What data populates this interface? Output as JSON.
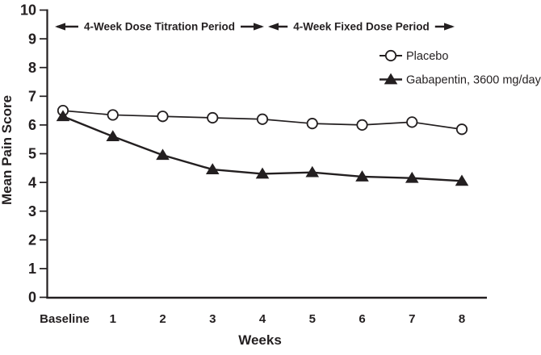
{
  "figure": {
    "background": "#ffffff",
    "ink": "#231f20"
  },
  "chart_data": {
    "type": "line",
    "title": "",
    "xlabel": "Weeks",
    "ylabel": "Mean Pain Score",
    "x_categories": [
      "Baseline",
      "1",
      "2",
      "3",
      "4",
      "5",
      "6",
      "7",
      "8"
    ],
    "ylim": [
      0,
      10
    ],
    "yticks": [
      0,
      1,
      2,
      3,
      4,
      5,
      6,
      7,
      8,
      9,
      10
    ],
    "grid": false,
    "legend_position": "upper-right",
    "series": [
      {
        "name": "Placebo",
        "marker": "open-circle",
        "color": "#231f20",
        "values": [
          6.5,
          6.35,
          6.3,
          6.25,
          6.2,
          6.05,
          6.0,
          6.1,
          5.85
        ]
      },
      {
        "name": "Gabapentin, 3600 mg/day",
        "marker": "filled-triangle",
        "color": "#231f20",
        "values": [
          6.3,
          5.6,
          4.95,
          4.45,
          4.3,
          4.35,
          4.2,
          4.15,
          4.05
        ]
      }
    ],
    "annotations": [
      {
        "text": "4-Week Dose Titration Period",
        "x_start": "Baseline",
        "x_end": "4"
      },
      {
        "text": "4-Week Fixed Dose Period",
        "x_start": "4",
        "x_end": "8"
      }
    ]
  }
}
